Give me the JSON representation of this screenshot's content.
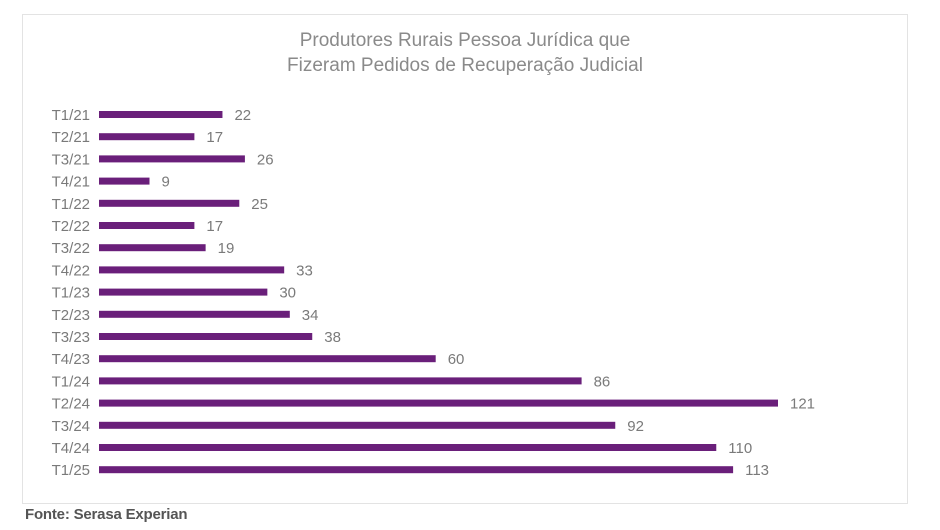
{
  "chart_data": {
    "type": "bar",
    "orientation": "horizontal",
    "title": "Produtores Rurais Pessoa Jurídica que Fizeram Pedidos de Recuperação Judicial",
    "title_lines": [
      "Produtores Rurais Pessoa Jurídica que",
      "Fizeram Pedidos de Recuperação Judicial"
    ],
    "categories": [
      "T1/21",
      "T2/21",
      "T3/21",
      "T4/21",
      "T1/22",
      "T2/22",
      "T3/22",
      "T4/22",
      "T1/23",
      "T2/23",
      "T3/23",
      "T4/23",
      "T1/24",
      "T2/24",
      "T3/24",
      "T4/24",
      "T1/25"
    ],
    "values": [
      22,
      17,
      26,
      9,
      25,
      17,
      19,
      33,
      30,
      34,
      38,
      60,
      86,
      121,
      92,
      110,
      113
    ],
    "xlim": [
      0,
      121
    ],
    "grid": false,
    "data_labels": true,
    "bar_color": "#6a1f7a"
  },
  "source": "Fonte: Serasa Experian"
}
